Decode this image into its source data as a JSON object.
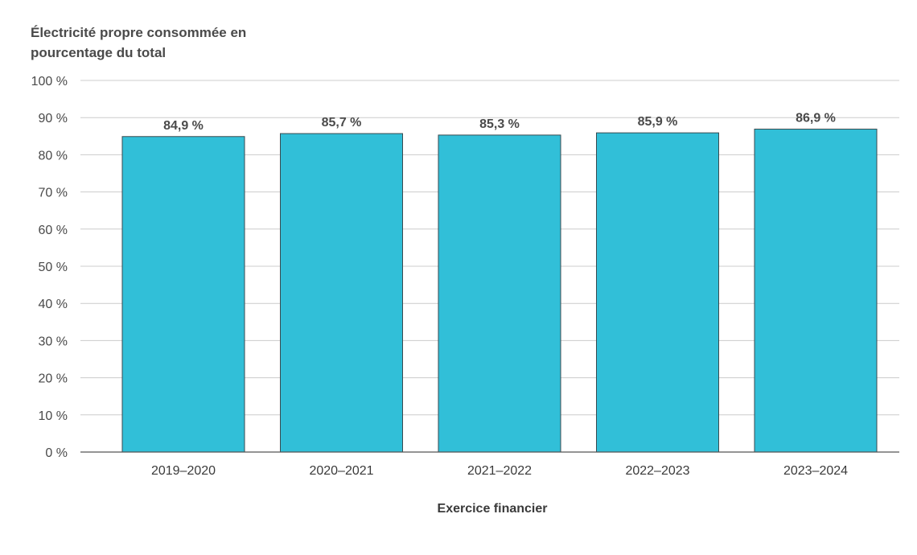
{
  "chart_data": {
    "type": "bar",
    "ylabel": "Électricité propre consommée en pourcentage du total",
    "ylabel_lines": [
      "Électricité propre consommée en",
      "pourcentage du total"
    ],
    "xlabel": "Exercice financier",
    "categories": [
      "2019–2020",
      "2020–2021",
      "2021–2022",
      "2022–2023",
      "2023–2024"
    ],
    "values": [
      84.9,
      85.7,
      85.3,
      85.9,
      86.9
    ],
    "value_labels": [
      "84,9 %",
      "85,7 %",
      "85,3 %",
      "85,9 %",
      "86,9 %"
    ],
    "ylim": [
      0,
      100
    ],
    "yticks": [
      0,
      10,
      20,
      30,
      40,
      50,
      60,
      70,
      80,
      90,
      100
    ],
    "ytick_labels": [
      "0 %",
      "10 %",
      "20 %",
      "30 %",
      "40 %",
      "50 %",
      "60 %",
      "70 %",
      "80 %",
      "90 %",
      "100 %"
    ],
    "grid": true,
    "colors": {
      "bar": "#31BFD8",
      "bar_edge": "#3a4a4f",
      "grid": "#cccccc",
      "axis": "#555555"
    }
  }
}
